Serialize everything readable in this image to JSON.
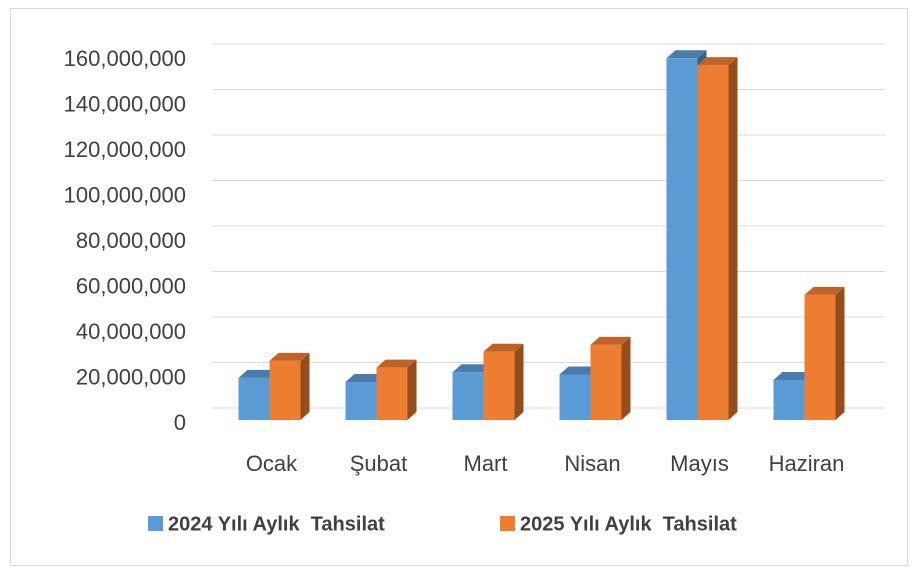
{
  "chart_data": {
    "type": "bar3d",
    "categories": [
      "Ocak",
      "Şubat",
      "Mart",
      "Nisan",
      "Mayıs",
      "Haziran"
    ],
    "series": [
      {
        "name": "2024 Yılı Aylık  Tahsilat",
        "color": "#5b9bd5",
        "values": [
          18500000,
          16700000,
          21000000,
          20000000,
          159000000,
          17600000
        ]
      },
      {
        "name": "2025 Yılı Aylık  Tahsilat",
        "color": "#ed7d31",
        "values": [
          26000000,
          23000000,
          30000000,
          33000000,
          156000000,
          55000000
        ]
      }
    ],
    "ylim": [
      0,
      160000000
    ],
    "yticks": [
      {
        "value": 0,
        "label": "0"
      },
      {
        "value": 20000000,
        "label": "20,000,000"
      },
      {
        "value": 40000000,
        "label": "40,000,000"
      },
      {
        "value": 60000000,
        "label": "60,000,000"
      },
      {
        "value": 80000000,
        "label": "80,000,000"
      },
      {
        "value": 100000000,
        "label": "100,000,000"
      },
      {
        "value": 120000000,
        "label": "120,000,000"
      },
      {
        "value": 140000000,
        "label": "140,000,000"
      },
      {
        "value": 160000000,
        "label": "160,000,000"
      }
    ],
    "grid": true,
    "legend": "bottom"
  }
}
